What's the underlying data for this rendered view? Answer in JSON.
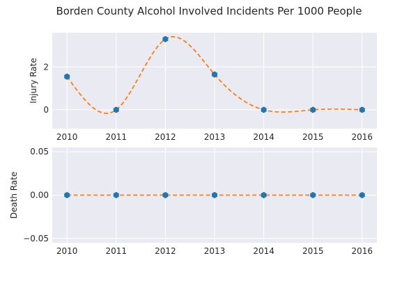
{
  "title": "Borden County Alcohol Involved Incidents Per 1000 People",
  "colors": {
    "background": "#ffffff",
    "plot_background": "#eaeaf2",
    "grid": "#ffffff",
    "marker": "#1f77b4",
    "curve": "#ff7f0e",
    "text": "#262626"
  },
  "chart_data": [
    {
      "type": "line",
      "title": "Borden County Alcohol Involved Incidents Per 1000 People",
      "xlabel": "",
      "ylabel": "Injury Rate",
      "x": [
        2010,
        2011,
        2012,
        2013,
        2014,
        2015,
        2016
      ],
      "xticks": [
        "2010",
        "2011",
        "2012",
        "2013",
        "2014",
        "2015",
        "2016"
      ],
      "xlim": [
        2009.7,
        2016.3
      ],
      "yticks": [
        0,
        2
      ],
      "ylim": [
        -0.88,
        3.6
      ],
      "grid": true,
      "series": [
        {
          "values": [
            1.55,
            0,
            3.3,
            1.65,
            0,
            0,
            0
          ],
          "marker": "hexagon",
          "line": "none",
          "color": "#1f77b4"
        },
        {
          "style": "dashed smooth curve through points",
          "color": "#ff7f0e"
        }
      ]
    },
    {
      "type": "line",
      "xlabel": "",
      "ylabel": "Death Rate",
      "x": [
        2010,
        2011,
        2012,
        2013,
        2014,
        2015,
        2016
      ],
      "xticks": [
        "2010",
        "2011",
        "2012",
        "2013",
        "2014",
        "2015",
        "2016"
      ],
      "xlim": [
        2009.7,
        2016.3
      ],
      "yticks": [
        -0.05,
        0.0,
        0.05
      ],
      "ytick_labels": [
        "−0.05",
        "0.00",
        "0.05"
      ],
      "ylim": [
        -0.055,
        0.055
      ],
      "grid": true,
      "series": [
        {
          "values": [
            0,
            0,
            0,
            0,
            0,
            0,
            0
          ],
          "marker": "hexagon",
          "line": "none",
          "color": "#1f77b4"
        },
        {
          "style": "dashed line through points",
          "color": "#ff7f0e"
        }
      ]
    }
  ]
}
